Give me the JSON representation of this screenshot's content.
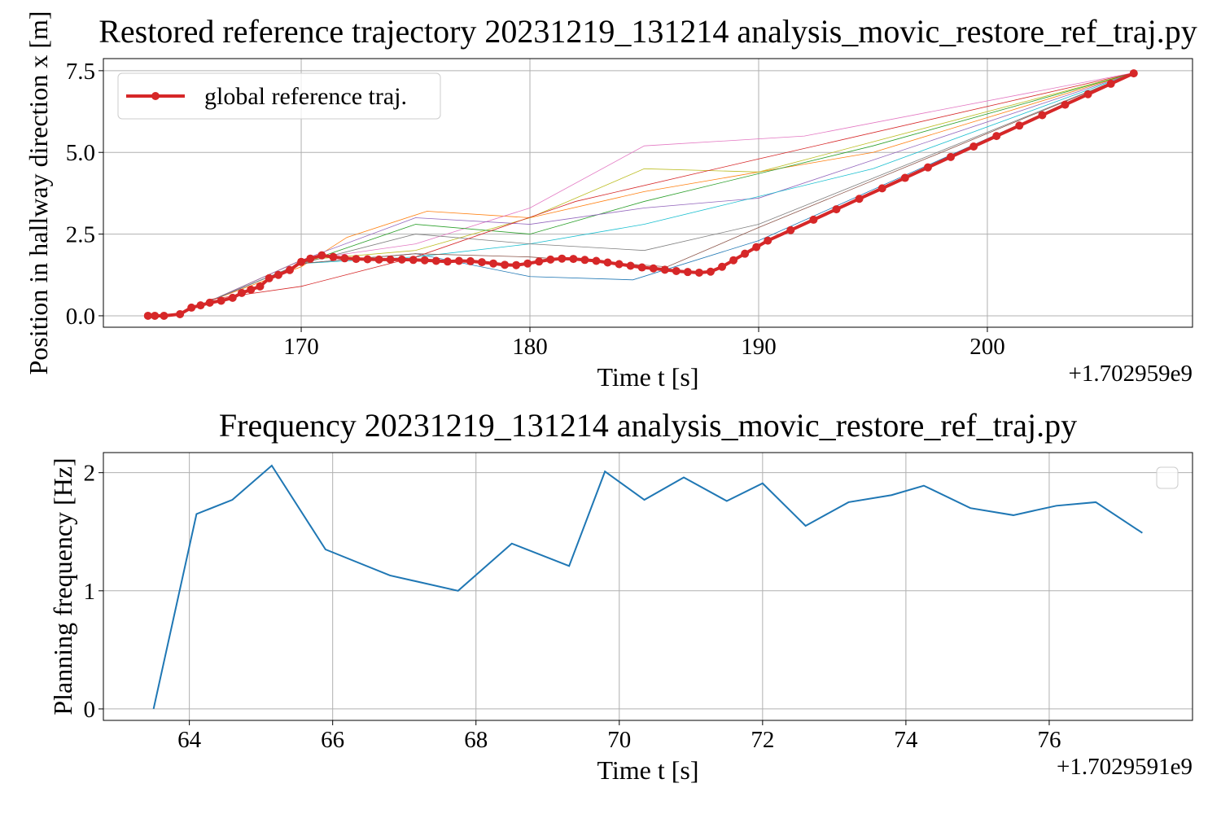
{
  "chart_data": [
    {
      "type": "line",
      "title": "Restored reference trajectory 20231219_131214 analysis_movic_restore_ref_traj.py",
      "x_label": "Time t [s]",
      "y_label": "Position in hallway direction x [m]",
      "x_offset_label": "+1.702959e9",
      "xlim": [
        161.35,
        208.97
      ],
      "xticks": [
        170,
        180,
        190,
        200
      ],
      "ylim": [
        -0.35,
        7.87
      ],
      "yticks": [
        {
          "value": 0,
          "label": "0.0"
        },
        2.5,
        {
          "value": 5,
          "label": "5.0"
        },
        7.5
      ],
      "grid": true,
      "legend": "upper left",
      "series": [
        {
          "color": "#ff7f0e",
          "x": [
            166,
            170,
            172,
            175.5,
            180,
            185,
            195,
            206.5
          ],
          "values": [
            0.45,
            1.5,
            2.4,
            3.2,
            3.0,
            3.8,
            5.0,
            7.45
          ]
        },
        {
          "color": "#e377c2",
          "x": [
            166,
            170,
            175,
            180,
            185,
            192,
            206.5
          ],
          "values": [
            0.45,
            1.7,
            2.2,
            3.3,
            5.2,
            5.5,
            7.45
          ]
        },
        {
          "color": "#bcbd22",
          "x": [
            166,
            170,
            175,
            180,
            185,
            190,
            206.5
          ],
          "values": [
            0.45,
            1.7,
            2.0,
            3.0,
            4.5,
            4.4,
            7.45
          ]
        },
        {
          "color": "#2ca02c",
          "x": [
            166,
            170,
            175,
            180,
            185,
            195,
            206.5
          ],
          "values": [
            0.45,
            1.6,
            2.8,
            2.5,
            3.5,
            5.2,
            7.45
          ]
        },
        {
          "color": "#1f77b4",
          "x": [
            166,
            170,
            175,
            180,
            184.5,
            190,
            206.5
          ],
          "values": [
            0.45,
            1.6,
            1.9,
            1.2,
            1.1,
            2.3,
            7.45
          ]
        },
        {
          "color": "#9467bd",
          "x": [
            166,
            170,
            175,
            180,
            185,
            190,
            206.5
          ],
          "values": [
            0.45,
            1.7,
            3.0,
            2.8,
            3.3,
            3.6,
            7.45
          ]
        },
        {
          "color": "#17becf",
          "x": [
            166,
            170,
            175,
            180,
            185,
            195,
            206.5
          ],
          "values": [
            0.45,
            1.6,
            1.8,
            2.2,
            2.8,
            4.5,
            7.45
          ]
        },
        {
          "color": "#8c564b",
          "x": [
            166,
            170,
            175,
            180,
            186,
            190,
            206.5
          ],
          "values": [
            0.45,
            1.6,
            1.9,
            1.8,
            1.5,
            2.7,
            7.45
          ]
        },
        {
          "color": "#7f7f7f",
          "x": [
            166,
            170,
            175,
            180,
            185,
            190,
            206.5
          ],
          "values": [
            0.45,
            1.6,
            2.5,
            2.2,
            2.0,
            2.8,
            7.45
          ]
        },
        {
          "color": "#d62728",
          "x": [
            166,
            170,
            175,
            182,
            190,
            206.5
          ],
          "values": [
            0.5,
            0.9,
            1.8,
            3.5,
            4.8,
            7.45
          ]
        },
        {
          "name": "global reference traj.",
          "color": "#d62728",
          "markers": true,
          "x": [
            163.3,
            163.6,
            164.0,
            164.7,
            165.2,
            165.6,
            166.0,
            166.5,
            167.0,
            167.4,
            167.8,
            168.2,
            168.6,
            169.0,
            169.5,
            170.0,
            170.4,
            170.9,
            171.4,
            171.9,
            172.4,
            172.9,
            173.4,
            173.9,
            174.4,
            174.9,
            175.4,
            175.9,
            176.4,
            176.9,
            177.4,
            177.9,
            178.4,
            178.9,
            179.4,
            179.9,
            180.4,
            180.9,
            181.4,
            181.9,
            182.4,
            182.9,
            183.4,
            183.9,
            184.4,
            184.9,
            185.4,
            185.9,
            186.4,
            186.9,
            187.4,
            187.9,
            188.4,
            188.9,
            189.4,
            189.9,
            190.4,
            191.4,
            192.4,
            193.4,
            194.4,
            195.4,
            196.4,
            197.4,
            198.4,
            199.4,
            200.4,
            201.4,
            202.4,
            203.4,
            204.4,
            205.4,
            206.4
          ],
          "values": [
            0,
            0,
            0,
            0.05,
            0.25,
            0.32,
            0.4,
            0.46,
            0.55,
            0.7,
            0.8,
            0.9,
            1.15,
            1.25,
            1.4,
            1.65,
            1.75,
            1.85,
            1.8,
            1.76,
            1.74,
            1.73,
            1.72,
            1.72,
            1.72,
            1.71,
            1.7,
            1.68,
            1.66,
            1.68,
            1.67,
            1.64,
            1.6,
            1.56,
            1.55,
            1.6,
            1.66,
            1.72,
            1.75,
            1.74,
            1.71,
            1.68,
            1.63,
            1.58,
            1.53,
            1.48,
            1.45,
            1.41,
            1.37,
            1.34,
            1.32,
            1.35,
            1.5,
            1.7,
            1.9,
            2.1,
            2.3,
            2.62,
            2.94,
            3.26,
            3.58,
            3.9,
            4.22,
            4.54,
            4.86,
            5.18,
            5.5,
            5.82,
            6.14,
            6.46,
            6.78,
            7.1,
            7.42
          ]
        }
      ]
    },
    {
      "type": "line",
      "title": "Frequency 20231219_131214 analysis_movic_restore_ref_traj.py",
      "x_label": "Time t [s]",
      "y_label": "Planning frequency [Hz]",
      "x_offset_label": "+1.7029591e9",
      "xlim": [
        62.8,
        78.0
      ],
      "xticks": [
        64,
        66,
        68,
        70,
        72,
        74,
        76
      ],
      "ylim": [
        -0.097,
        2.17
      ],
      "yticks": [
        0,
        1,
        2
      ],
      "grid": true,
      "legend": "upper right",
      "series": [
        {
          "color": "#1f77b4",
          "x": [
            63.5,
            64.1,
            64.6,
            65.15,
            65.9,
            66.8,
            67.75,
            68.5,
            69.3,
            69.8,
            70.35,
            70.9,
            71.5,
            72.0,
            72.6,
            73.2,
            73.8,
            74.25,
            74.9,
            75.5,
            76.1,
            76.65,
            77.3
          ],
          "values": [
            0,
            1.65,
            1.77,
            2.06,
            1.35,
            1.13,
            1.0,
            1.4,
            1.21,
            2.01,
            1.77,
            1.96,
            1.76,
            1.91,
            1.55,
            1.75,
            1.81,
            1.89,
            1.7,
            1.64,
            1.72,
            1.75,
            1.49
          ]
        }
      ]
    }
  ]
}
